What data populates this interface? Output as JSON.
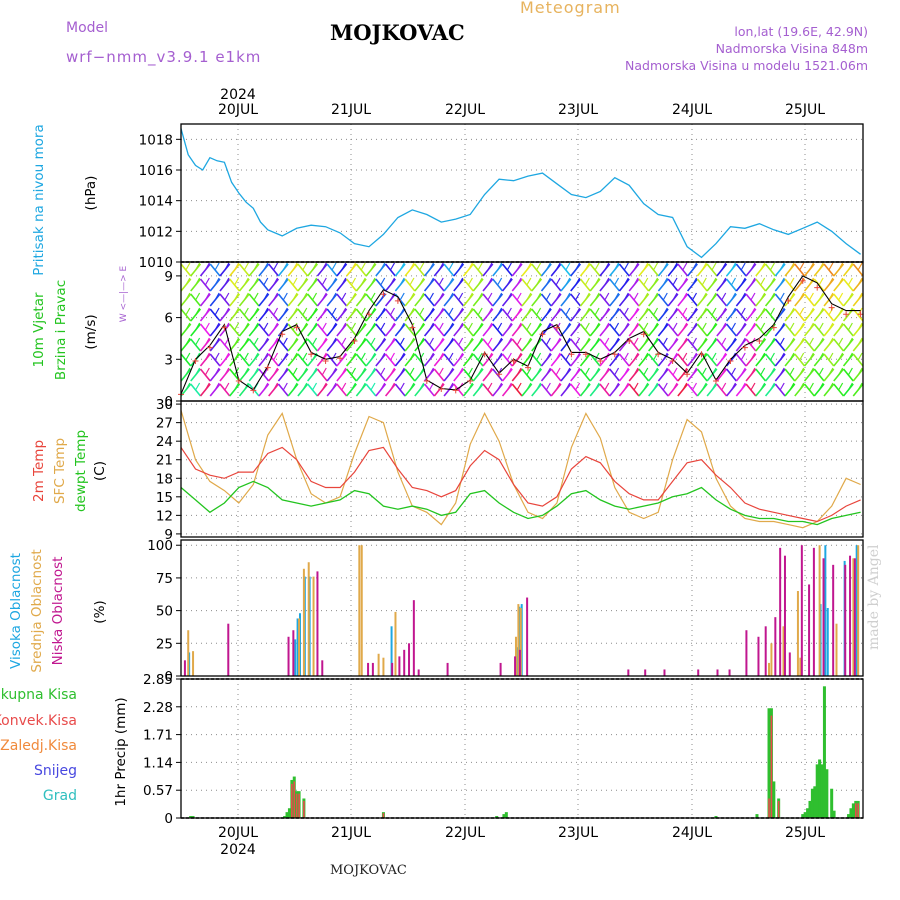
{
  "header": {
    "model_label": "Model",
    "model_name": "wrf−nmm_v3.9.1  e1km",
    "title": "MOJKOVAC",
    "meteogram_label": "Meteogram",
    "lonlat": "lon,lat (19.6E, 42.9N)",
    "altitude": "Nadmorska Visina 848m",
    "model_altitude": "Nadmorska Visina u modelu 1521.06m"
  },
  "footer": {
    "station": "MOJKOVAC"
  },
  "signature": "made by Angel",
  "timeline": {
    "year": "2024",
    "day_labels": [
      "20JUL",
      "21JUL",
      "22JUL",
      "23JUL",
      "24JUL",
      "25JUL"
    ]
  },
  "colors": {
    "pressure": "#1ea7e1",
    "temp_2m": "#e8453c",
    "temp_sfc": "#e0a94a",
    "dewpoint": "#23c41f",
    "cloud_high": "#1ea7e1",
    "cloud_mid": "#e0a94a",
    "cloud_low": "#c0168f",
    "precip_total": "#2fbf2f",
    "precip_conv": "#e84b4b",
    "precip_frz": "#f08a3c",
    "snow": "#4848e0",
    "hail": "#2fbfbf"
  },
  "panels": {
    "pressure": {
      "label": "Pritisak na nivou mora",
      "unit": "(hPa)",
      "ticks": [
        "1010",
        "1012",
        "1014",
        "1016",
        "1018"
      ]
    },
    "wind": {
      "label1": "10m Vjetar",
      "label2": "Brzina i Pravac",
      "unit": "(m/s)",
      "ticks": [
        "0",
        "3",
        "6",
        "9"
      ],
      "compass": "W  <—|—>  E"
    },
    "temp": {
      "label1": "2m Temp",
      "label2": "SFC Temp",
      "label3": "dewpt Temp",
      "unit": "(C)",
      "ticks": [
        "9",
        "12",
        "15",
        "18",
        "21",
        "24",
        "27",
        "30"
      ]
    },
    "cloud": {
      "label1": "Visoka Oblacnost",
      "label2": "Srednja Oblacnost",
      "label3": "Niska Oblacnost",
      "unit": "(%)",
      "ticks": [
        "0",
        "25",
        "50",
        "75",
        "100"
      ]
    },
    "precip": {
      "unit": "1hr Precip (mm)",
      "legend": [
        "Ukupna  Kisa",
        "Konvek.Kisa",
        "Zaledj.Kisa",
        "Snijeg",
        "Grad"
      ],
      "ticks": [
        "0",
        "0.57",
        "1.14",
        "1.71",
        "2.28",
        "2.85"
      ]
    }
  },
  "chart_data": [
    {
      "type": "line",
      "title": "Pritisak na nivou mora",
      "ylabel": "(hPa)",
      "x_unit": "hours from 2024-07-19 14:00",
      "ylim": [
        1010,
        1019
      ],
      "x": [
        0,
        3,
        6,
        9,
        12,
        15,
        18,
        21,
        24,
        27,
        30,
        33,
        36,
        42,
        48,
        54,
        60,
        66,
        72,
        78,
        84,
        90,
        96,
        102,
        108,
        114,
        120,
        126,
        132,
        138,
        144,
        150,
        156,
        162,
        168,
        174,
        180,
        186,
        192,
        198,
        204,
        210,
        216,
        222,
        228,
        234,
        240,
        246,
        252,
        258,
        264,
        270,
        276,
        282
      ],
      "values": [
        1018.7,
        1017.0,
        1016.3,
        1016.0,
        1016.8,
        1016.6,
        1016.5,
        1015.2,
        1014.5,
        1013.9,
        1013.5,
        1012.6,
        1012.1,
        1011.7,
        1012.2,
        1012.4,
        1012.3,
        1011.9,
        1011.2,
        1011.0,
        1011.8,
        1012.9,
        1013.4,
        1013.1,
        1012.6,
        1012.8,
        1013.1,
        1014.4,
        1015.4,
        1015.3,
        1015.6,
        1015.8,
        1015.1,
        1014.4,
        1014.2,
        1014.6,
        1015.5,
        1015.0,
        1013.8,
        1013.1,
        1012.9,
        1011.0,
        1010.3,
        1011.2,
        1012.3,
        1012.2,
        1012.5,
        1012.1,
        1011.8,
        1012.2,
        1012.6,
        1012.0,
        1011.2,
        1010.5
      ]
    },
    {
      "type": "line",
      "title": "10m Vjetar Brzina i Pravac",
      "ylabel": "(m/s)",
      "x_unit": "hours from 2024-07-19 14:00",
      "ylim": [
        0,
        10
      ],
      "x": [
        0,
        6,
        12,
        18,
        24,
        30,
        36,
        42,
        48,
        54,
        60,
        66,
        72,
        78,
        84,
        90,
        96,
        102,
        108,
        114,
        120,
        126,
        132,
        138,
        144,
        150,
        156,
        162,
        168,
        174,
        180,
        186,
        192,
        198,
        204,
        210,
        216,
        222,
        228,
        234,
        240,
        246,
        252,
        258,
        264,
        270,
        276,
        282
      ],
      "values": [
        0.5,
        3.0,
        4.0,
        5.5,
        1.5,
        0.8,
        2.5,
        5.0,
        5.5,
        3.5,
        3.0,
        3.2,
        4.5,
        6.5,
        8.0,
        7.5,
        5.5,
        1.5,
        0.9,
        0.8,
        1.5,
        3.5,
        2.0,
        3.0,
        2.5,
        5.0,
        5.5,
        3.5,
        3.5,
        3.0,
        3.5,
        4.5,
        5.0,
        3.5,
        3.0,
        2.0,
        3.5,
        1.5,
        3.0,
        4.0,
        4.5,
        5.5,
        7.5,
        9.0,
        8.5,
        7.0,
        6.5,
        6.5
      ]
    },
    {
      "type": "line",
      "title": "2m Temp / SFC Temp / dewpt Temp",
      "ylabel": "(C)",
      "x_unit": "hours from 2024-07-19 14:00",
      "ylim": [
        9,
        30
      ],
      "x": [
        0,
        6,
        12,
        18,
        24,
        30,
        36,
        42,
        48,
        54,
        60,
        66,
        72,
        78,
        84,
        90,
        96,
        102,
        108,
        114,
        120,
        126,
        132,
        138,
        144,
        150,
        156,
        162,
        168,
        174,
        180,
        186,
        192,
        198,
        204,
        210,
        216,
        222,
        228,
        234,
        240,
        246,
        252,
        258,
        264,
        270,
        276,
        282
      ],
      "series": [
        {
          "name": "2m Temp",
          "values": [
            23.0,
            19.5,
            18.5,
            18.0,
            19.0,
            19.0,
            22.0,
            23.0,
            21.0,
            17.5,
            16.5,
            16.5,
            19.0,
            22.5,
            23.0,
            19.5,
            16.5,
            16.0,
            15.0,
            16.0,
            20.0,
            22.5,
            21.0,
            17.0,
            14.0,
            13.5,
            15.0,
            19.5,
            21.5,
            20.5,
            17.5,
            15.5,
            14.5,
            14.5,
            17.5,
            20.5,
            21.0,
            18.5,
            16.5,
            14.0,
            13.0,
            12.5,
            12.0,
            11.5,
            11.0,
            12.0,
            13.5,
            14.5
          ]
        },
        {
          "name": "SFC Temp",
          "values": [
            29.0,
            21.0,
            17.5,
            16.0,
            14.0,
            17.0,
            25.0,
            28.5,
            21.0,
            15.5,
            14.0,
            15.0,
            22.0,
            28.0,
            27.0,
            19.0,
            13.5,
            12.5,
            10.5,
            14.0,
            23.5,
            28.5,
            24.0,
            17.0,
            12.5,
            11.5,
            14.0,
            23.0,
            28.5,
            24.5,
            16.5,
            12.5,
            11.5,
            12.5,
            21.0,
            27.5,
            25.5,
            18.0,
            13.5,
            11.5,
            11.0,
            11.0,
            10.5,
            10.0,
            11.0,
            13.5,
            18.0,
            17.0
          ]
        },
        {
          "name": "dewpt Temp",
          "values": [
            16.5,
            14.5,
            12.5,
            14.0,
            16.5,
            17.5,
            16.5,
            14.5,
            14.0,
            13.5,
            14.0,
            14.5,
            16.0,
            15.5,
            13.5,
            13.0,
            13.5,
            13.0,
            12.0,
            12.5,
            15.5,
            16.0,
            14.0,
            12.5,
            11.5,
            12.0,
            13.5,
            15.5,
            16.0,
            14.5,
            13.5,
            13.0,
            13.5,
            14.0,
            15.0,
            15.5,
            16.5,
            14.5,
            13.0,
            12.0,
            11.5,
            11.5,
            11.0,
            11.0,
            10.5,
            11.5,
            12.0,
            12.5
          ]
        }
      ]
    },
    {
      "type": "bar",
      "title": "Visoka / Srednja / Niska Oblacnost",
      "ylabel": "(%)",
      "x_unit": "hours from 2024-07-19 14:00",
      "ylim": [
        0,
        100
      ],
      "series": [
        {
          "name": "Visoka Oblacnost",
          "x": [
            4,
            48,
            49,
            50,
            52,
            54,
            88,
            140,
            141,
            142,
            266,
            268,
            269,
            276,
            281
          ],
          "values": [
            18,
            28,
            44,
            48,
            76,
            76,
            38,
            22,
            53,
            55,
            55,
            100,
            52,
            88,
            100
          ]
        },
        {
          "name": "Srednja Oblacnost",
          "x": [
            3,
            5,
            49,
            51,
            53,
            55,
            74,
            75,
            82,
            84,
            89,
            139,
            140,
            141,
            244,
            245,
            250,
            256,
            257,
            265,
            272,
            279,
            281
          ],
          "values": [
            35,
            19,
            44,
            82,
            87,
            76,
            100,
            100,
            17,
            14,
            49,
            30,
            55,
            52,
            10,
            25,
            38,
            65,
            14,
            100,
            40,
            90,
            100
          ]
        },
        {
          "name": "Niska Oblacnost",
          "x": [
            1,
            19,
            44,
            46,
            56,
            58,
            77,
            79,
            87,
            90,
            92,
            94,
            96,
            98,
            110,
            132,
            138,
            140,
            143,
            185,
            192,
            200,
            214,
            222,
            227,
            234,
            239,
            242,
            246,
            248,
            250,
            252,
            257,
            260,
            262,
            266,
            270,
            275,
            277,
            279
          ],
          "values": [
            12,
            40,
            30,
            35,
            80,
            12,
            10,
            10,
            10,
            15,
            20,
            25,
            58,
            5,
            10,
            10,
            15,
            20,
            60,
            5,
            5,
            5,
            5,
            5,
            5,
            35,
            30,
            38,
            45,
            98,
            92,
            18,
            100,
            70,
            98,
            90,
            85,
            85,
            92,
            90
          ]
        }
      ]
    },
    {
      "type": "bar",
      "title": "1hr Precip",
      "ylabel": "1hr Precip (mm)",
      "x_unit": "hours from 2024-07-19 14:00",
      "ylim": [
        0,
        2.85
      ],
      "series": [
        {
          "name": "Ukupna  Kisa",
          "x": [
            4,
            5,
            43,
            44,
            45,
            46,
            47,
            48,
            49,
            51,
            84,
            131,
            134,
            135,
            222,
            239,
            244,
            245,
            246,
            248,
            258,
            259,
            260,
            261,
            262,
            263,
            264,
            265,
            266,
            267,
            268,
            270,
            271,
            277,
            278,
            279,
            280,
            281
          ],
          "values": [
            0.04,
            0.04,
            0.04,
            0.12,
            0.2,
            0.78,
            0.85,
            0.55,
            0.55,
            0.4,
            0.12,
            0.04,
            0.08,
            0.12,
            0.04,
            0.08,
            2.25,
            2.25,
            0.75,
            0.4,
            0.08,
            0.12,
            0.2,
            0.35,
            0.6,
            0.65,
            1.1,
            1.2,
            1.1,
            2.7,
            1.0,
            0.6,
            0.15,
            0.08,
            0.2,
            0.3,
            0.35,
            0.35
          ]
        },
        {
          "name": "Konvek.Kisa",
          "x": [
            46,
            47,
            48,
            49,
            51,
            84,
            244,
            245,
            248,
            280,
            281
          ],
          "values": [
            0.7,
            0.75,
            0.5,
            0.5,
            0.35,
            0.1,
            0.4,
            2.1,
            0.35,
            0.3,
            0.3
          ]
        },
        {
          "name": "Zaledj.Kisa",
          "x": [],
          "values": []
        },
        {
          "name": "Snijeg",
          "x": [],
          "values": []
        },
        {
          "name": "Grad",
          "x": [],
          "values": []
        }
      ]
    }
  ]
}
